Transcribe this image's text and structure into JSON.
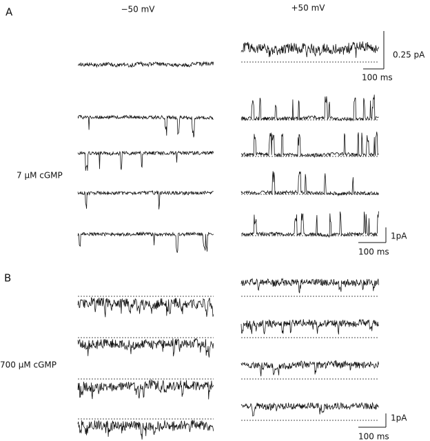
{
  "panel_a": {
    "label": "A",
    "columns": [
      "−50 mV",
      "+50 mV"
    ],
    "row_label": "7 µM cGMP",
    "scale_bars": [
      {
        "amplitude": "0.25 pA",
        "time": "100 ms"
      },
      {
        "amplitude": "1pA",
        "time": "100 ms"
      }
    ]
  },
  "panel_b": {
    "label": "B",
    "row_label": "700 µM cGMP",
    "scale_bar": {
      "amplitude": "1pA",
      "time": "100 ms"
    }
  }
}
